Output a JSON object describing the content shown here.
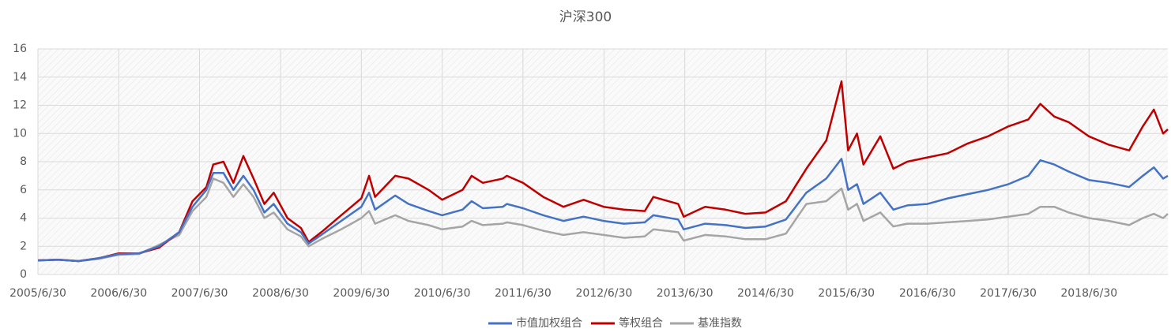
{
  "chart_data": {
    "type": "line",
    "title": "沪深300",
    "x": [
      "2005/6/30",
      "2005/9/30",
      "2005/12/30",
      "2006/3/31",
      "2006/6/30",
      "2006/9/29",
      "2006/12/29",
      "2007/3/30",
      "2007/5/29",
      "2007/7/31",
      "2007/8/31",
      "2007/10/16",
      "2007/11/30",
      "2008/1/14",
      "2008/2/29",
      "2008/4/18",
      "2008/5/30",
      "2008/7/31",
      "2008/9/30",
      "2008/11/4",
      "2008/12/31",
      "2009/3/31",
      "2009/6/30",
      "2009/8/4",
      "2009/8/31",
      "2009/11/30",
      "2010/1/29",
      "2010/4/30",
      "2010/6/30",
      "2010/9/30",
      "2010/11/10",
      "2010/12/31",
      "2011/3/31",
      "2011/4/18",
      "2011/6/30",
      "2011/9/30",
      "2011/12/30",
      "2012/3/30",
      "2012/6/29",
      "2012/9/28",
      "2012/12/31",
      "2013/2/8",
      "2013/5/31",
      "2013/6/25",
      "2013/9/30",
      "2013/12/31",
      "2014/3/31",
      "2014/6/30",
      "2014/9/30",
      "2014/12/31",
      "2015/3/31",
      "2015/6/8",
      "2015/7/8",
      "2015/8/17",
      "2015/9/15",
      "2015/11/30",
      "2016/1/28",
      "2016/3/31",
      "2016/6/30",
      "2016/9/30",
      "2016/12/30",
      "2017/3/31",
      "2017/6/30",
      "2017/9/29",
      "2017/11/22",
      "2018/1/24",
      "2018/3/30",
      "2018/6/29",
      "2018/9/28",
      "2018/12/28",
      "2019/2/28",
      "2019/4/19",
      "2019/5/31",
      "2019/6/21"
    ],
    "series": [
      {
        "name": "市值加权组合",
        "color": "#4472c4",
        "values": [
          1.0,
          1.05,
          0.95,
          1.15,
          1.45,
          1.5,
          2.0,
          3.0,
          4.8,
          6.0,
          7.2,
          7.2,
          6.0,
          7.0,
          6.0,
          4.4,
          5.0,
          3.6,
          3.0,
          2.2,
          2.8,
          3.8,
          4.8,
          5.8,
          4.6,
          5.6,
          5.0,
          4.5,
          4.2,
          4.6,
          5.2,
          4.7,
          4.8,
          5.0,
          4.7,
          4.2,
          3.8,
          4.1,
          3.8,
          3.6,
          3.7,
          4.2,
          3.9,
          3.2,
          3.6,
          3.5,
          3.3,
          3.4,
          3.9,
          5.8,
          6.8,
          8.2,
          6.0,
          6.4,
          5.0,
          5.8,
          4.6,
          4.9,
          5.0,
          5.4,
          5.7,
          6.0,
          6.4,
          7.0,
          8.1,
          7.8,
          7.3,
          6.7,
          6.5,
          6.2,
          7.0,
          7.6,
          6.8,
          7.0
        ]
      },
      {
        "name": "等权组合",
        "color": "#c00000",
        "values": [
          1.0,
          1.05,
          0.95,
          1.15,
          1.5,
          1.5,
          1.9,
          3.0,
          5.2,
          6.2,
          7.8,
          8.0,
          6.5,
          8.4,
          6.8,
          5.0,
          5.8,
          4.0,
          3.3,
          2.3,
          3.0,
          4.2,
          5.4,
          7.0,
          5.5,
          7.0,
          6.8,
          6.0,
          5.3,
          6.0,
          7.0,
          6.5,
          6.8,
          7.0,
          6.5,
          5.5,
          4.8,
          5.3,
          4.8,
          4.6,
          4.5,
          5.5,
          5.0,
          4.1,
          4.8,
          4.6,
          4.3,
          4.4,
          5.2,
          7.5,
          9.5,
          13.7,
          8.8,
          10.0,
          7.8,
          9.8,
          7.5,
          8.0,
          8.3,
          8.6,
          9.3,
          9.8,
          10.5,
          11.0,
          12.1,
          11.2,
          10.8,
          9.8,
          9.2,
          8.8,
          10.5,
          11.7,
          10.0,
          10.3
        ]
      },
      {
        "name": "基准指数",
        "color": "#a5a5a5",
        "values": [
          1.0,
          1.05,
          0.95,
          1.1,
          1.4,
          1.45,
          2.1,
          2.8,
          4.5,
          5.5,
          6.8,
          6.5,
          5.5,
          6.4,
          5.5,
          4.0,
          4.4,
          3.2,
          2.7,
          2.0,
          2.5,
          3.2,
          4.0,
          4.5,
          3.6,
          4.2,
          3.8,
          3.5,
          3.2,
          3.4,
          3.8,
          3.5,
          3.6,
          3.7,
          3.5,
          3.1,
          2.8,
          3.0,
          2.8,
          2.6,
          2.7,
          3.2,
          3.0,
          2.4,
          2.8,
          2.7,
          2.5,
          2.5,
          2.9,
          5.0,
          5.2,
          6.1,
          4.6,
          5.0,
          3.8,
          4.4,
          3.4,
          3.6,
          3.6,
          3.7,
          3.8,
          3.9,
          4.1,
          4.3,
          4.8,
          4.8,
          4.4,
          4.0,
          3.8,
          3.5,
          4.0,
          4.3,
          4.0,
          4.3
        ]
      }
    ],
    "xlim": [
      "2005/6/30",
      "2019/6/21"
    ],
    "xticks": [
      "2005/6/30",
      "2006/6/30",
      "2007/6/30",
      "2008/6/30",
      "2009/6/30",
      "2010/6/30",
      "2011/6/30",
      "2012/6/30",
      "2013/6/30",
      "2014/6/30",
      "2015/6/30",
      "2016/6/30",
      "2017/6/30",
      "2018/6/30"
    ],
    "ylim": [
      0,
      16
    ],
    "yticks": [
      0,
      2,
      4,
      6,
      8,
      10,
      12,
      14,
      16
    ],
    "grid": true,
    "legend": "bottom"
  }
}
